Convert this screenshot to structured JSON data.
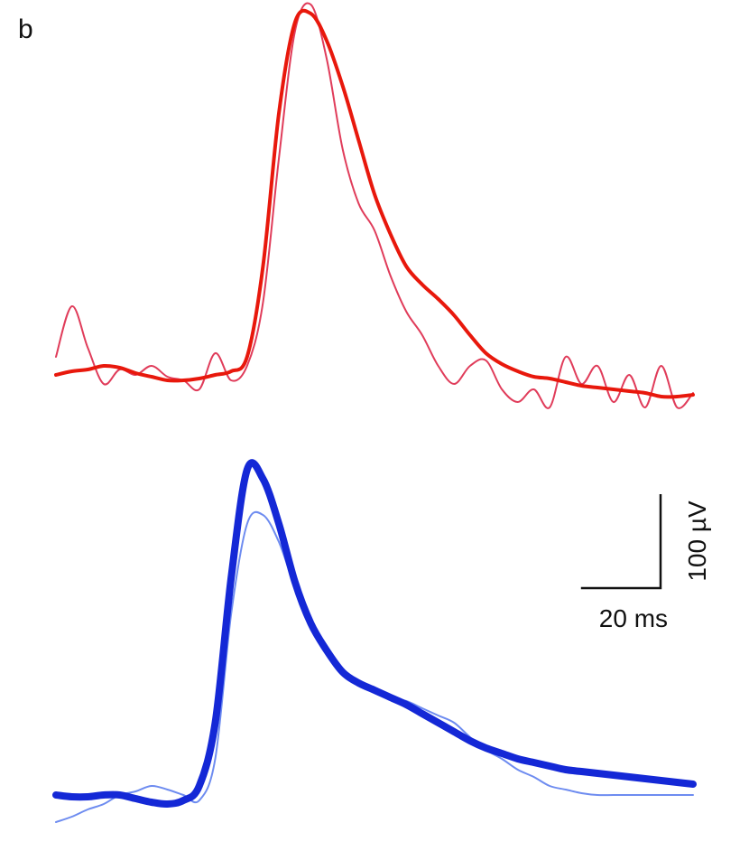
{
  "panel_label": "b",
  "scale_bar": {
    "time_label": "20 ms",
    "amplitude_label": "100 µV",
    "time_value_ms": 20,
    "amplitude_value_uV": 100
  },
  "colors": {
    "top_smooth": "#e8180c",
    "top_raw": "#e03c5a",
    "bottom_smooth": "#1428d6",
    "bottom_raw": "#6e8cf0",
    "scale": "#111111"
  },
  "chart_data": [
    {
      "type": "line",
      "xlabel": "",
      "ylabel": "",
      "x_unit": "ms",
      "y_unit": "µV",
      "xlim": [
        0,
        160
      ],
      "ylim": [
        -20,
        210
      ],
      "x": [
        0,
        4,
        8,
        12,
        16,
        20,
        24,
        28,
        32,
        36,
        40,
        44,
        48,
        52,
        56,
        60,
        64,
        68,
        72,
        76,
        80,
        84,
        88,
        92,
        96,
        100,
        104,
        108,
        112,
        116,
        120,
        124,
        128,
        132,
        136,
        140,
        144,
        148,
        152,
        156,
        160
      ],
      "series": [
        {
          "values": [
            0,
            2,
            3,
            5,
            4,
            1,
            -1,
            -3,
            -3,
            -2,
            0,
            2,
            10,
            60,
            145,
            195,
            200,
            185,
            160,
            130,
            100,
            78,
            60,
            50,
            42,
            33,
            22,
            12,
            6,
            2,
            -1,
            -2,
            -4,
            -6,
            -7,
            -8,
            -9,
            -10,
            -12,
            -12,
            -11
          ]
        },
        {
          "values": [
            10,
            38,
            15,
            -5,
            3,
            0,
            5,
            -1,
            -3,
            -8,
            12,
            -3,
            5,
            40,
            120,
            190,
            205,
            175,
            125,
            95,
            80,
            55,
            35,
            22,
            5,
            -5,
            5,
            8,
            -8,
            -15,
            -8,
            -18,
            10,
            -5,
            5,
            -15,
            0,
            -18,
            5,
            -18,
            -10
          ]
        },
        {
          "values": [
            0,
            -1,
            -1,
            0,
            0,
            -2,
            -4,
            -5,
            -3,
            5,
            40,
            120,
            180,
            175,
            150,
            118,
            95,
            80,
            68,
            62,
            58,
            54,
            50,
            45,
            40,
            35,
            30,
            26,
            23,
            20,
            18,
            16,
            14,
            13,
            12,
            11,
            10,
            9,
            8,
            7,
            6
          ]
        },
        {
          "values": [
            -15,
            -12,
            -8,
            -5,
            0,
            2,
            5,
            3,
            0,
            -3,
            20,
            100,
            150,
            155,
            140,
            115,
            95,
            78,
            68,
            62,
            59,
            54,
            52,
            48,
            44,
            40,
            32,
            25,
            20,
            14,
            10,
            5,
            3,
            1,
            0,
            0,
            0,
            0,
            0,
            0,
            0
          ]
        }
      ]
    }
  ]
}
